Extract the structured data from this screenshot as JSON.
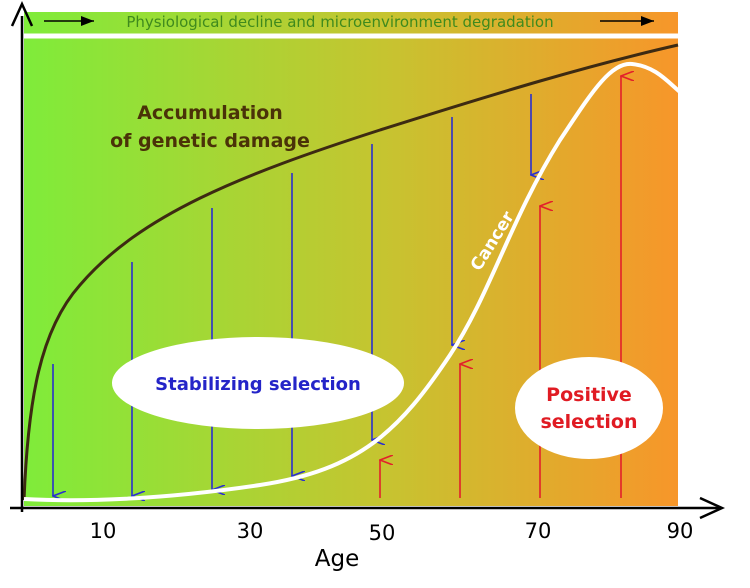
{
  "banner": {
    "text": "Physiological decline and microenvironment degradation"
  },
  "labels": {
    "genetic_damage_line1": "Accumulation",
    "genetic_damage_line2": "of genetic damage",
    "cancer": "Cancer",
    "stabilizing": "Stabilizing selection",
    "positive_line1": "Positive",
    "positive_line2": "selection"
  },
  "axis": {
    "x_label": "Age",
    "ticks": [
      "10",
      "30",
      "50",
      "70",
      "90"
    ]
  },
  "colors": {
    "gradient_start": "#7fec3a",
    "gradient_mid": "#c6c430",
    "gradient_end": "#f7962a",
    "damage_curve": "#3d2a12",
    "cancer_curve": "#ffffff",
    "stabilizing_arrows": "#2a2fcf",
    "positive_arrows": "#e2202b",
    "stabilizing_text": "#2424c8",
    "positive_text": "#e01b23",
    "damage_text": "#4a3208",
    "banner_text": "#3f8a1d"
  }
}
